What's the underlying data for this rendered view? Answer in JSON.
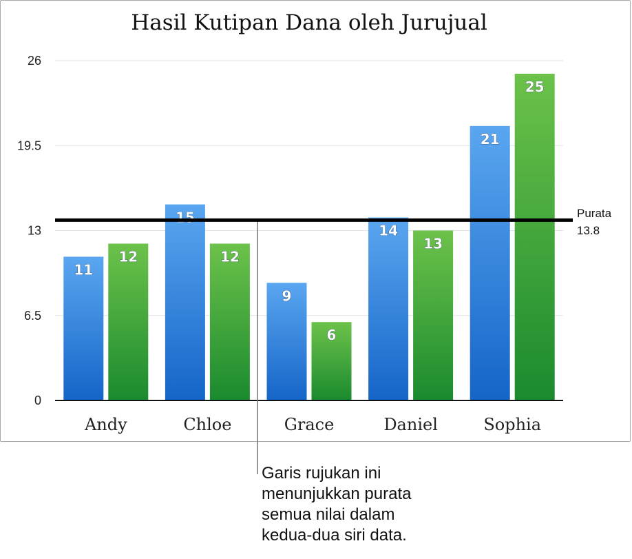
{
  "chart_data": {
    "type": "bar",
    "title": "Hasil Kutipan Dana oleh Jurujual",
    "categories": [
      "Andy",
      "Chloe",
      "Grace",
      "Daniel",
      "Sophia"
    ],
    "series": [
      {
        "values": [
          11,
          15,
          9,
          14,
          21
        ],
        "color_top": "#5aa6f0",
        "color_bottom": "#1565c8"
      },
      {
        "values": [
          12,
          12,
          6,
          13,
          25
        ],
        "color_top": "#6cc24a",
        "color_bottom": "#1a8a2e"
      }
    ],
    "ylim": [
      0,
      26
    ],
    "yticks": [
      "0",
      "6.5",
      "13",
      "19.5",
      "26"
    ],
    "grid": true,
    "reference_line": {
      "label": "Purata",
      "value": 13.8,
      "value_label": "13.8"
    }
  },
  "callout": {
    "lines": [
      "Garis rujukan ini",
      "menunjukkan purata",
      "semua nilai dalam",
      "kedua-dua siri data."
    ]
  }
}
